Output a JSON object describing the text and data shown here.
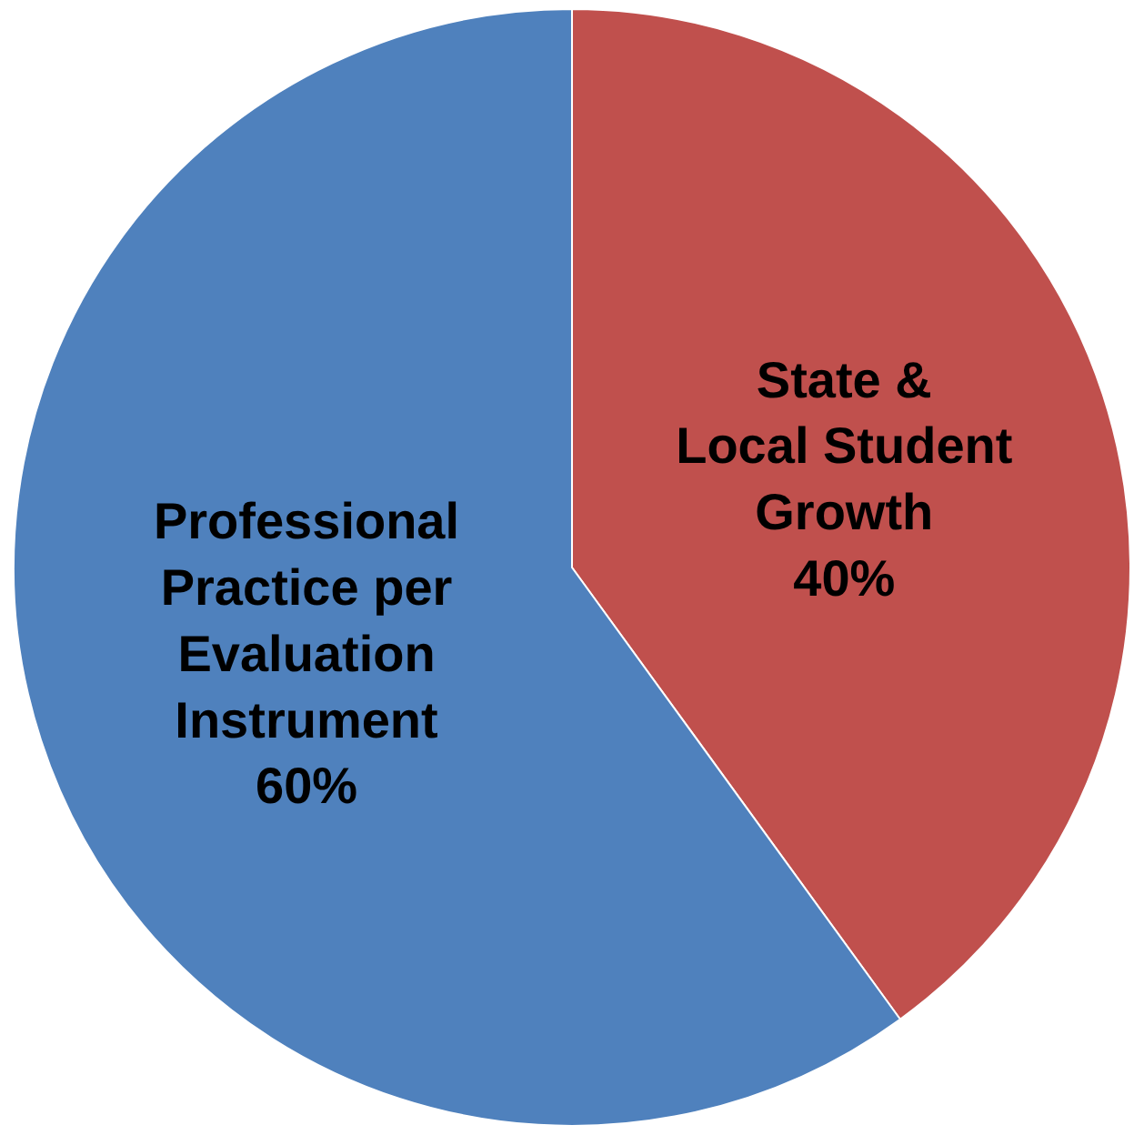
{
  "chart_data": {
    "type": "pie",
    "categories": [
      "State & Local Student Growth",
      "Professional Practice per Evaluation Instrument"
    ],
    "values": [
      40,
      60
    ],
    "value_labels": [
      "40%",
      "60%"
    ],
    "colors": [
      "#c0504d",
      "#4f81bd"
    ],
    "legend": false
  }
}
